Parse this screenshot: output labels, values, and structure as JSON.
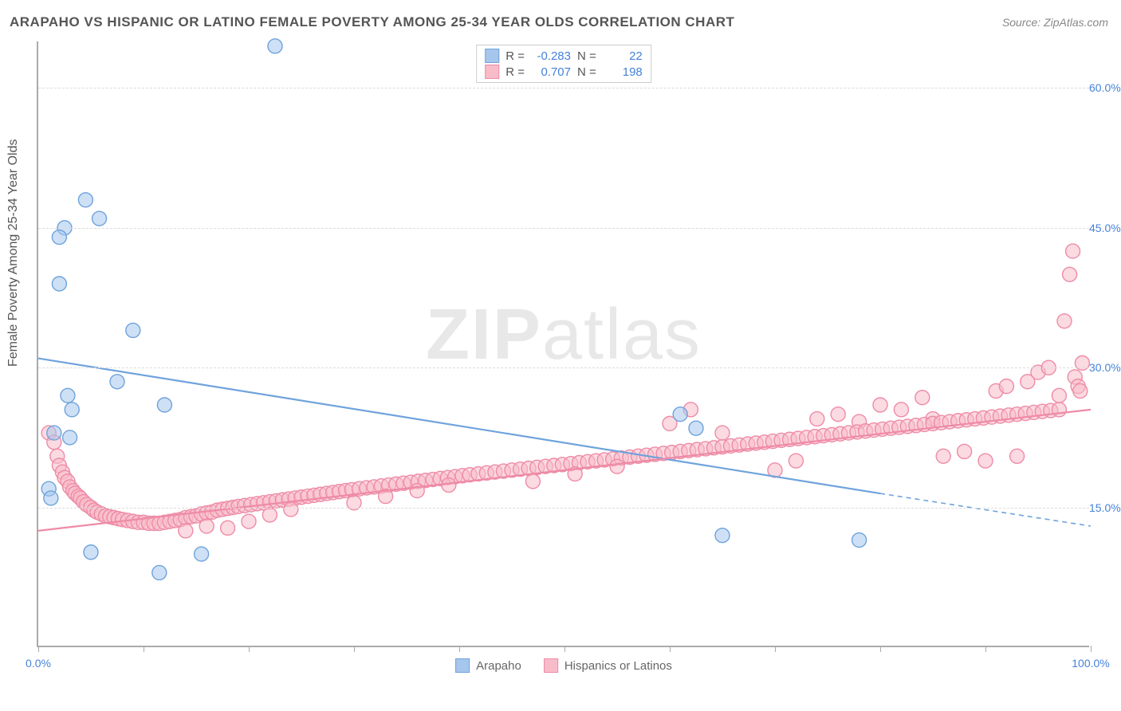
{
  "title": "ARAPAHO VS HISPANIC OR LATINO FEMALE POVERTY AMONG 25-34 YEAR OLDS CORRELATION CHART",
  "source": "Source: ZipAtlas.com",
  "y_axis_label": "Female Poverty Among 25-34 Year Olds",
  "watermark_a": "ZIP",
  "watermark_b": "atlas",
  "chart": {
    "type": "scatter",
    "xlim": [
      0,
      100
    ],
    "ylim": [
      0,
      65
    ],
    "y_ticks": [
      15.0,
      30.0,
      45.0,
      60.0
    ],
    "y_tick_labels": [
      "15.0%",
      "30.0%",
      "45.0%",
      "60.0%"
    ],
    "x_ticks": [
      0,
      10,
      20,
      30,
      40,
      50,
      60,
      70,
      80,
      90,
      100
    ],
    "x_tick_labels": {
      "0": "0.0%",
      "100": "100.0%"
    },
    "background_color": "#ffffff",
    "grid_color": "#dddddd",
    "axis_color": "#aaaaaa",
    "marker_radius": 9,
    "marker_stroke_width": 1.4,
    "trend_line_width": 2.2,
    "series": [
      {
        "name": "Arapaho",
        "fill": "#a6c6ec",
        "stroke": "#6fa3dc",
        "fill_opacity": 0.55,
        "R": "-0.283",
        "N": "22",
        "trend": {
          "x1": 0,
          "y1": 31.0,
          "x2_solid": 80,
          "y2_solid": 16.5,
          "x2_dash": 100,
          "y2_dash": 13.0
        },
        "points": [
          [
            22.5,
            64.5
          ],
          [
            4.5,
            48.0
          ],
          [
            5.8,
            46.0
          ],
          [
            2.5,
            45.0
          ],
          [
            2.0,
            44.0
          ],
          [
            2.0,
            39.0
          ],
          [
            9.0,
            34.0
          ],
          [
            7.5,
            28.5
          ],
          [
            2.8,
            27.0
          ],
          [
            12.0,
            26.0
          ],
          [
            3.2,
            25.5
          ],
          [
            1.5,
            23.0
          ],
          [
            3.0,
            22.5
          ],
          [
            1.0,
            17.0
          ],
          [
            1.2,
            16.0
          ],
          [
            61.0,
            25.0
          ],
          [
            62.5,
            23.5
          ],
          [
            65.0,
            12.0
          ],
          [
            78.0,
            11.5
          ],
          [
            5.0,
            10.2
          ],
          [
            15.5,
            10.0
          ],
          [
            11.5,
            8.0
          ]
        ]
      },
      {
        "name": "Hispanics or Latinos",
        "fill": "#f8bcc9",
        "stroke": "#ee8ba6",
        "fill_opacity": 0.55,
        "R": "0.707",
        "N": "198",
        "trend": {
          "x1": 0,
          "y1": 12.5,
          "x2_solid": 100,
          "y2_solid": 25.5,
          "x2_dash": 100,
          "y2_dash": 25.5
        },
        "points": [
          [
            1.0,
            23.0
          ],
          [
            1.5,
            22.0
          ],
          [
            1.8,
            20.5
          ],
          [
            2.0,
            19.5
          ],
          [
            2.3,
            18.8
          ],
          [
            2.5,
            18.2
          ],
          [
            2.8,
            17.8
          ],
          [
            3.0,
            17.2
          ],
          [
            3.3,
            16.8
          ],
          [
            3.5,
            16.5
          ],
          [
            3.8,
            16.2
          ],
          [
            4.0,
            16.0
          ],
          [
            4.3,
            15.6
          ],
          [
            4.6,
            15.3
          ],
          [
            5.0,
            15.0
          ],
          [
            5.3,
            14.7
          ],
          [
            5.6,
            14.5
          ],
          [
            6.0,
            14.3
          ],
          [
            6.4,
            14.1
          ],
          [
            6.8,
            14.0
          ],
          [
            7.2,
            13.9
          ],
          [
            7.6,
            13.8
          ],
          [
            8.0,
            13.7
          ],
          [
            8.5,
            13.6
          ],
          [
            9.0,
            13.5
          ],
          [
            9.5,
            13.4
          ],
          [
            10.0,
            13.4
          ],
          [
            10.5,
            13.3
          ],
          [
            11.0,
            13.3
          ],
          [
            11.5,
            13.3
          ],
          [
            12.0,
            13.4
          ],
          [
            12.5,
            13.5
          ],
          [
            13.0,
            13.6
          ],
          [
            13.5,
            13.7
          ],
          [
            14.0,
            13.9
          ],
          [
            14.5,
            14.0
          ],
          [
            15.0,
            14.1
          ],
          [
            15.5,
            14.3
          ],
          [
            16.0,
            14.4
          ],
          [
            16.5,
            14.5
          ],
          [
            17.0,
            14.7
          ],
          [
            17.5,
            14.8
          ],
          [
            18.0,
            14.9
          ],
          [
            18.5,
            15.0
          ],
          [
            19.0,
            15.1
          ],
          [
            19.6,
            15.2
          ],
          [
            20.2,
            15.3
          ],
          [
            20.8,
            15.4
          ],
          [
            21.4,
            15.5
          ],
          [
            22.0,
            15.6
          ],
          [
            22.6,
            15.7
          ],
          [
            23.2,
            15.8
          ],
          [
            23.8,
            15.9
          ],
          [
            24.4,
            16.0
          ],
          [
            25.0,
            16.1
          ],
          [
            25.6,
            16.2
          ],
          [
            26.2,
            16.3
          ],
          [
            26.8,
            16.4
          ],
          [
            27.4,
            16.5
          ],
          [
            28.0,
            16.6
          ],
          [
            14.0,
            12.5
          ],
          [
            16.0,
            13.0
          ],
          [
            18.0,
            12.8
          ],
          [
            20.0,
            13.5
          ],
          [
            22.0,
            14.2
          ],
          [
            24.0,
            14.8
          ],
          [
            28.6,
            16.7
          ],
          [
            29.2,
            16.8
          ],
          [
            29.8,
            16.9
          ],
          [
            30.5,
            17.0
          ],
          [
            31.2,
            17.1
          ],
          [
            31.9,
            17.2
          ],
          [
            32.6,
            17.3
          ],
          [
            33.3,
            17.4
          ],
          [
            34.0,
            17.5
          ],
          [
            34.7,
            17.6
          ],
          [
            35.4,
            17.7
          ],
          [
            36.1,
            17.8
          ],
          [
            36.8,
            17.9
          ],
          [
            37.5,
            18.0
          ],
          [
            38.2,
            18.1
          ],
          [
            38.9,
            18.2
          ],
          [
            39.6,
            18.3
          ],
          [
            40.3,
            18.4
          ],
          [
            41.0,
            18.5
          ],
          [
            41.8,
            18.6
          ],
          [
            30.0,
            15.5
          ],
          [
            33.0,
            16.2
          ],
          [
            36.0,
            16.8
          ],
          [
            39.0,
            17.4
          ],
          [
            42.6,
            18.7
          ],
          [
            43.4,
            18.8
          ],
          [
            44.2,
            18.9
          ],
          [
            45.0,
            19.0
          ],
          [
            45.8,
            19.1
          ],
          [
            46.6,
            19.2
          ],
          [
            47.4,
            19.3
          ],
          [
            48.2,
            19.4
          ],
          [
            49.0,
            19.5
          ],
          [
            49.8,
            19.6
          ],
          [
            50.6,
            19.7
          ],
          [
            51.4,
            19.8
          ],
          [
            52.2,
            19.9
          ],
          [
            53.0,
            20.0
          ],
          [
            53.8,
            20.1
          ],
          [
            54.6,
            20.2
          ],
          [
            55.4,
            20.3
          ],
          [
            56.2,
            20.4
          ],
          [
            57.0,
            20.5
          ],
          [
            57.8,
            20.6
          ],
          [
            47.0,
            17.8
          ],
          [
            51.0,
            18.6
          ],
          [
            55.0,
            19.4
          ],
          [
            58.6,
            20.7
          ],
          [
            59.4,
            20.8
          ],
          [
            60.2,
            20.9
          ],
          [
            61.0,
            21.0
          ],
          [
            61.8,
            21.1
          ],
          [
            62.6,
            21.2
          ],
          [
            63.4,
            21.3
          ],
          [
            64.2,
            21.4
          ],
          [
            65.0,
            21.5
          ],
          [
            65.8,
            21.6
          ],
          [
            62.0,
            25.5
          ],
          [
            60.0,
            24.0
          ],
          [
            65.0,
            23.0
          ],
          [
            66.6,
            21.7
          ],
          [
            67.4,
            21.8
          ],
          [
            68.2,
            21.9
          ],
          [
            69.0,
            22.0
          ],
          [
            69.8,
            22.1
          ],
          [
            70.6,
            22.2
          ],
          [
            71.4,
            22.3
          ],
          [
            72.2,
            22.4
          ],
          [
            73.0,
            22.5
          ],
          [
            73.8,
            22.6
          ],
          [
            70.0,
            19.0
          ],
          [
            72.0,
            20.0
          ],
          [
            74.0,
            24.5
          ],
          [
            76.0,
            25.0
          ],
          [
            78.0,
            24.2
          ],
          [
            74.6,
            22.7
          ],
          [
            75.4,
            22.8
          ],
          [
            76.2,
            22.9
          ],
          [
            77.0,
            23.0
          ],
          [
            77.8,
            23.1
          ],
          [
            78.6,
            23.2
          ],
          [
            79.4,
            23.3
          ],
          [
            80.2,
            23.4
          ],
          [
            81.0,
            23.5
          ],
          [
            81.8,
            23.6
          ],
          [
            80.0,
            26.0
          ],
          [
            82.0,
            25.5
          ],
          [
            84.0,
            26.8
          ],
          [
            85.0,
            24.5
          ],
          [
            82.6,
            23.7
          ],
          [
            83.4,
            23.8
          ],
          [
            84.2,
            23.9
          ],
          [
            85.0,
            24.0
          ],
          [
            85.8,
            24.1
          ],
          [
            86.6,
            24.2
          ],
          [
            87.4,
            24.3
          ],
          [
            88.2,
            24.4
          ],
          [
            89.0,
            24.5
          ],
          [
            89.8,
            24.6
          ],
          [
            86.0,
            20.5
          ],
          [
            88.0,
            21.0
          ],
          [
            90.0,
            20.0
          ],
          [
            91.0,
            27.5
          ],
          [
            92.0,
            28.0
          ],
          [
            90.6,
            24.7
          ],
          [
            91.4,
            24.8
          ],
          [
            92.2,
            24.9
          ],
          [
            93.0,
            25.0
          ],
          [
            93.8,
            25.1
          ],
          [
            94.6,
            25.2
          ],
          [
            95.4,
            25.3
          ],
          [
            96.2,
            25.4
          ],
          [
            97.0,
            25.5
          ],
          [
            93.0,
            20.5
          ],
          [
            94.0,
            28.5
          ],
          [
            95.0,
            29.5
          ],
          [
            96.0,
            30.0
          ],
          [
            97.0,
            27.0
          ],
          [
            97.5,
            35.0
          ],
          [
            98.0,
            40.0
          ],
          [
            98.3,
            42.5
          ],
          [
            98.5,
            29.0
          ],
          [
            98.8,
            28.0
          ],
          [
            99.0,
            27.5
          ],
          [
            99.2,
            30.5
          ]
        ]
      }
    ]
  },
  "legend_bottom": [
    {
      "label": "Arapaho",
      "fill": "#a6c6ec",
      "stroke": "#6fa3dc"
    },
    {
      "label": "Hispanics or Latinos",
      "fill": "#f8bcc9",
      "stroke": "#ee8ba6"
    }
  ]
}
